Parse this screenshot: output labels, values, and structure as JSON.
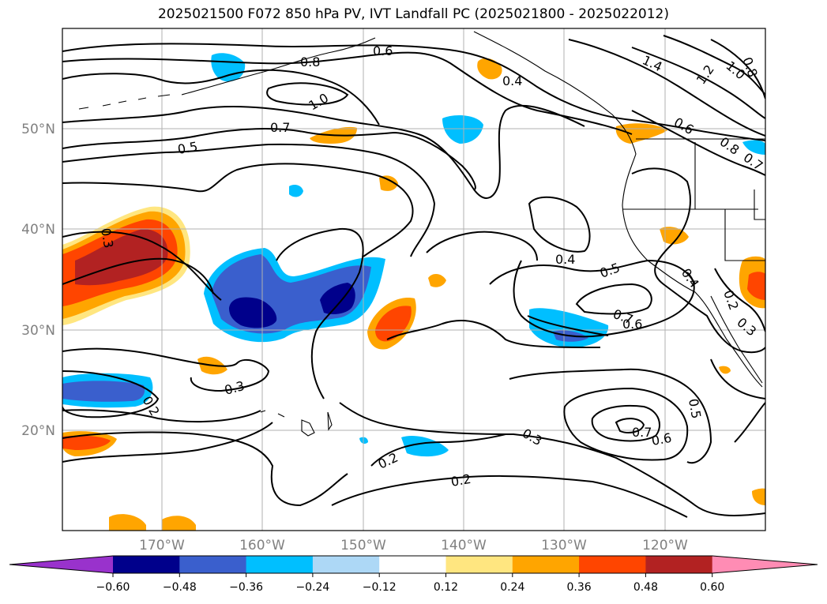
{
  "title": "2025021500 F072 850 hPa PV, IVT Landfall PC (2025021800 - 2025022012)",
  "lat_labels": [
    "50°N",
    "40°N",
    "30°N",
    "20°N"
  ],
  "lon_labels": [
    "170°W",
    "160°W",
    "150°W",
    "140°W",
    "130°W",
    "120°W"
  ],
  "colorbar": {
    "ticks": [
      "−0.60",
      "−0.48",
      "−0.36",
      "−0.24",
      "−0.12",
      "0.12",
      "0.24",
      "0.36",
      "0.48",
      "0.60"
    ],
    "colors": [
      "#9932CC",
      "#00008B",
      "#3A5FCD",
      "#00BFFF",
      "#ADD8F6",
      "#FFFFFF",
      "#FFE680",
      "#FFA500",
      "#FF4500",
      "#B22222",
      "#FF8CB4"
    ]
  },
  "contour_labels": [
    "0.8",
    "0.6",
    "1.4",
    "1.2",
    "1.0",
    "0.8",
    "0.4",
    "1.0",
    "0.6",
    "0.8",
    "0.7",
    "0.7",
    "0.5",
    "0.3",
    "0.4",
    "0.5",
    "0.4",
    "0.2",
    "0.3",
    "0.7",
    "0.6",
    "0.3",
    "0.2",
    "0.5",
    "0.7",
    "0.6",
    "0.3",
    "0.2",
    "0.2"
  ]
}
